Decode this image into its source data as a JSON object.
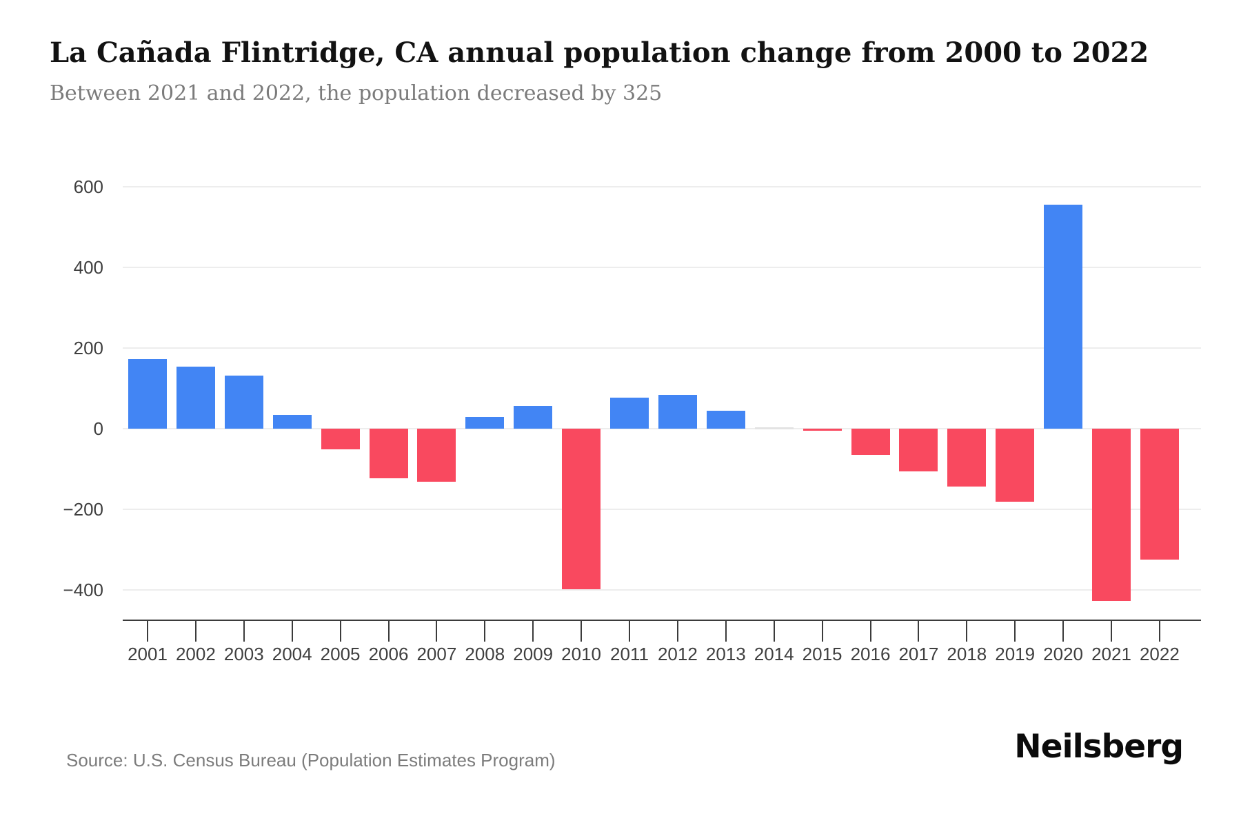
{
  "header": {
    "title": "La Cañada Flintridge, CA annual population change from 2000 to 2022",
    "subtitle": "Between 2021 and 2022, the population decreased by 325"
  },
  "chart_data": {
    "type": "bar",
    "title": "La Cañada Flintridge, CA annual population change from 2000 to 2022",
    "subtitle": "Between 2021 and 2022, the population decreased by 325",
    "series_name": "Annual population change",
    "categories": [
      "2001",
      "2002",
      "2003",
      "2004",
      "2005",
      "2006",
      "2007",
      "2008",
      "2009",
      "2010",
      "2011",
      "2012",
      "2013",
      "2014",
      "2015",
      "2016",
      "2017",
      "2018",
      "2019",
      "2020",
      "2021",
      "2022"
    ],
    "values": [
      173,
      153,
      132,
      34,
      -51,
      -123,
      -131,
      29,
      57,
      -398,
      77,
      83,
      44,
      0,
      -5,
      -65,
      -106,
      -143,
      -182,
      555,
      -427,
      -325
    ],
    "y_ticks": [
      600,
      400,
      200,
      0,
      -200,
      -400
    ],
    "y_tick_labels": [
      "600",
      "400",
      "200",
      "0",
      "−200",
      "−400"
    ],
    "ylim": [
      -475,
      660
    ],
    "grid": "horizontal",
    "legend": "none",
    "xlabel": "",
    "ylabel": "",
    "colors": {
      "positive": "#4285F4",
      "negative": "#F9495F",
      "zero_bar": "#E3E3E3",
      "gridline": "#EDEDED",
      "axis": "#3B3B3B",
      "tick_text": "#3F3F3F"
    }
  },
  "footer": {
    "source": "Source: U.S. Census Bureau (Population Estimates Program)",
    "brand": "Neilsberg"
  }
}
